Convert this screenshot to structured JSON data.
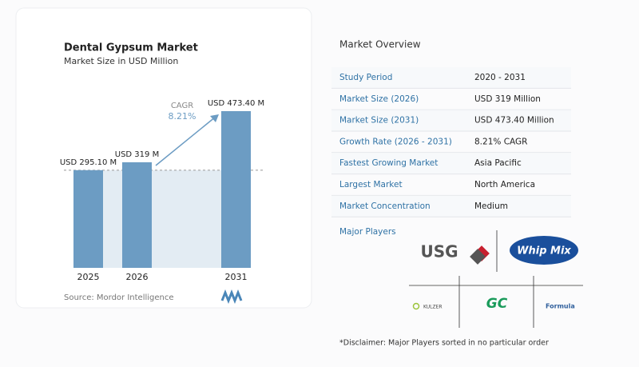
{
  "chart_data": {
    "type": "bar",
    "title": "Dental Gypsum Market",
    "subtitle": "Market Size in USD Million",
    "categories": [
      "2025",
      "2026",
      "2031"
    ],
    "values": [
      295.1,
      319,
      473.4
    ],
    "value_labels": [
      "USD 295.10 M",
      "USD 319 M",
      "USD 473.40 M"
    ],
    "color": "#6c9cc3",
    "annotation": {
      "label": "CAGR",
      "value": "8.21%"
    },
    "source": "Source:  Mordor Intelligence"
  },
  "overview": {
    "title": "Market Overview",
    "rows": [
      [
        "Study Period",
        "2020 - 2031"
      ],
      [
        "Market Size (2026)",
        "USD 319 Million"
      ],
      [
        "Market Size (2031)",
        "USD 473.40 Million"
      ],
      [
        "Growth Rate (2026 - 2031)",
        "8.21% CAGR"
      ],
      [
        "Fastest Growing Market",
        "Asia Pacific"
      ],
      [
        "Largest Market",
        "North America"
      ],
      [
        "Market Concentration",
        "Medium"
      ]
    ],
    "players_title": "Major Players",
    "players": [
      "USG",
      "Whip Mix",
      "GC",
      "KULZER",
      "Formula"
    ],
    "disclaimer": "*Disclaimer: Major Players sorted in no particular order"
  }
}
